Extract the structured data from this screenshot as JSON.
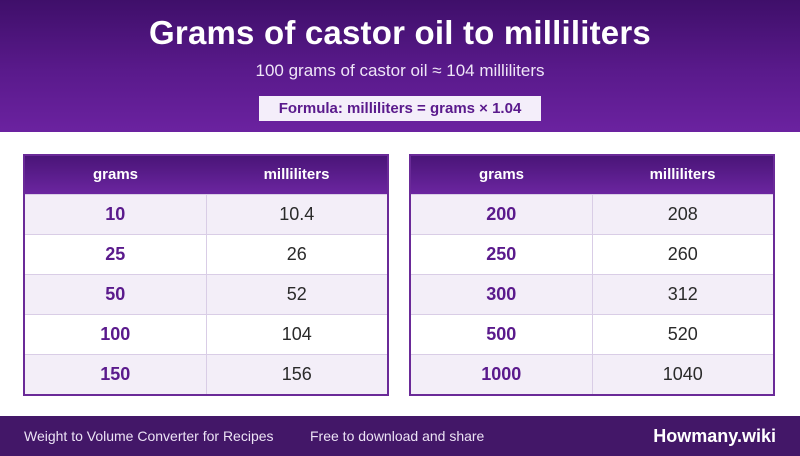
{
  "header": {
    "title": "Grams of castor oil to milliliters",
    "subtitle": "100 grams of castor oil ≈ 104 milliliters",
    "formula": "Formula: milliliters = grams × 1.04"
  },
  "tables": [
    {
      "headers": {
        "grams": "grams",
        "milliliters": "milliliters"
      },
      "rows": [
        {
          "grams": "10",
          "ml": "10.4"
        },
        {
          "grams": "25",
          "ml": "26"
        },
        {
          "grams": "50",
          "ml": "52"
        },
        {
          "grams": "100",
          "ml": "104"
        },
        {
          "grams": "150",
          "ml": "156"
        }
      ]
    },
    {
      "headers": {
        "grams": "grams",
        "milliliters": "milliliters"
      },
      "rows": [
        {
          "grams": "200",
          "ml": "208"
        },
        {
          "grams": "250",
          "ml": "260"
        },
        {
          "grams": "300",
          "ml": "312"
        },
        {
          "grams": "500",
          "ml": "520"
        },
        {
          "grams": "1000",
          "ml": "1040"
        }
      ]
    }
  ],
  "footer": {
    "left_text": "Weight to Volume Converter for Recipes",
    "mid_text": "Free to download and share",
    "brand": "Howmany.wiki"
  },
  "colors": {
    "primary": "#5a1a8c",
    "header_dark": "#3f0f6a",
    "row_alt": "#f3eef8",
    "footer_bg": "#431768"
  }
}
